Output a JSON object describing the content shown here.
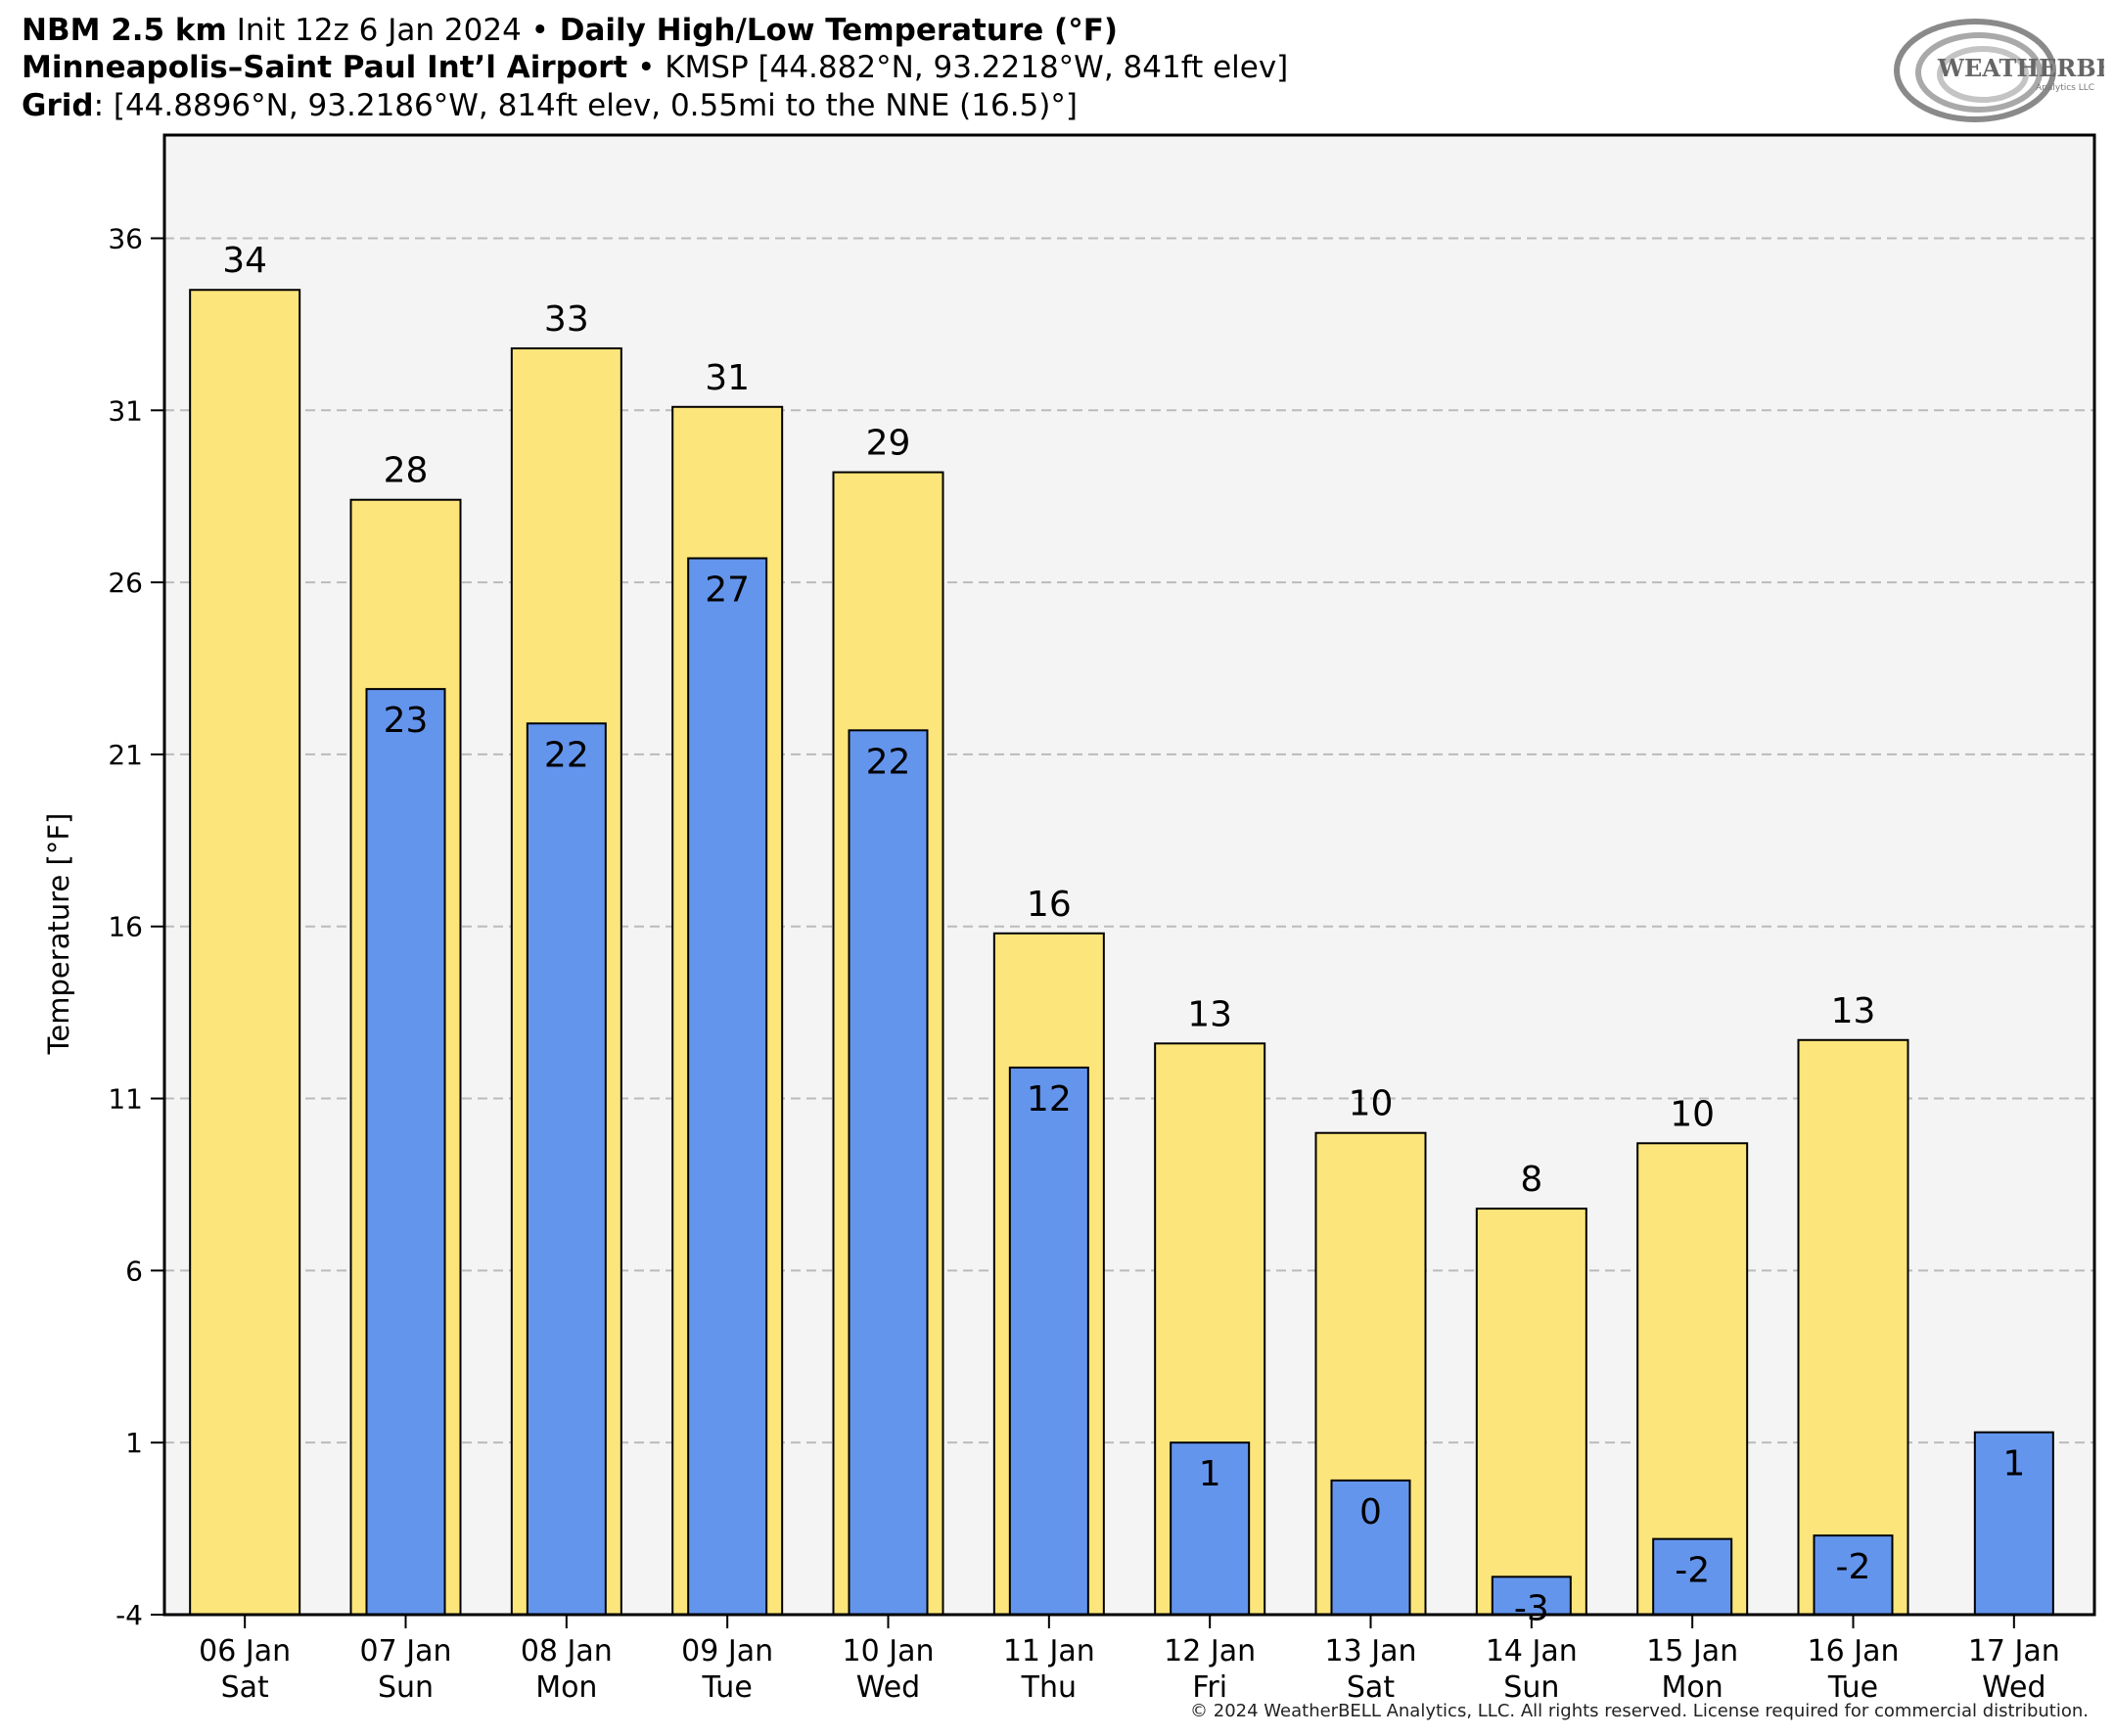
{
  "header": {
    "line1": {
      "model": "NBM 2.5 km",
      "init": " Init 12z 6 Jan 2024 ",
      "sep": "•",
      "title": " Daily High/Low Temperature (°F)"
    },
    "line2": {
      "station": "Minneapolis–Saint Paul Int’l Airport",
      "sep": " • ",
      "info": "KMSP [44.882°N, 93.2218°W, 841ft elev]"
    },
    "line3": {
      "label": "Grid",
      "info": ": [44.8896°N, 93.2186°W, 814ft elev, 0.55mi to the NNE (16.5)°]"
    }
  },
  "logo": {
    "text_big": "WEATHERBELL",
    "text_small": "Analytics LLC",
    "icon": "swirl-logo-icon"
  },
  "copyright": "© 2024 WeatherBELL Analytics, LLC. All rights reserved. License required for commercial distribution.",
  "colors": {
    "high": "#fce57a",
    "low": "#6495ed",
    "plot_bg": "#f4f4f4",
    "grid": "#bbbbbb"
  },
  "chart_data": {
    "type": "bar",
    "ylabel": "Temperature [°F]",
    "ylim": [
      -4,
      39
    ],
    "yticks": [
      -4,
      1,
      6,
      11,
      16,
      21,
      26,
      31,
      36
    ],
    "grid": true,
    "categories": [
      {
        "date": "06 Jan",
        "day": "Sat"
      },
      {
        "date": "07 Jan",
        "day": "Sun"
      },
      {
        "date": "08 Jan",
        "day": "Mon"
      },
      {
        "date": "09 Jan",
        "day": "Tue"
      },
      {
        "date": "10 Jan",
        "day": "Wed"
      },
      {
        "date": "11 Jan",
        "day": "Thu"
      },
      {
        "date": "12 Jan",
        "day": "Fri"
      },
      {
        "date": "13 Jan",
        "day": "Sat"
      },
      {
        "date": "14 Jan",
        "day": "Sun"
      },
      {
        "date": "15 Jan",
        "day": "Mon"
      },
      {
        "date": "16 Jan",
        "day": "Tue"
      },
      {
        "date": "17 Jan",
        "day": "Wed"
      }
    ],
    "series": [
      {
        "values": [
          34.5,
          28.4,
          32.8,
          31.1,
          29.2,
          15.8,
          12.6,
          10.0,
          7.8,
          9.7,
          12.7,
          null
        ],
        "labels": [
          "34",
          "28",
          "33",
          "31",
          "29",
          "16",
          "13",
          "10",
          "8",
          "10",
          "13",
          null
        ]
      },
      {
        "values": [
          null,
          22.9,
          21.9,
          26.7,
          21.7,
          11.9,
          1.0,
          -0.1,
          -2.9,
          -1.8,
          -1.7,
          1.3
        ],
        "labels": [
          null,
          "23",
          "22",
          "27",
          "22",
          "12",
          "1",
          "0",
          "-3",
          "-2",
          "-2",
          "1"
        ]
      }
    ]
  }
}
